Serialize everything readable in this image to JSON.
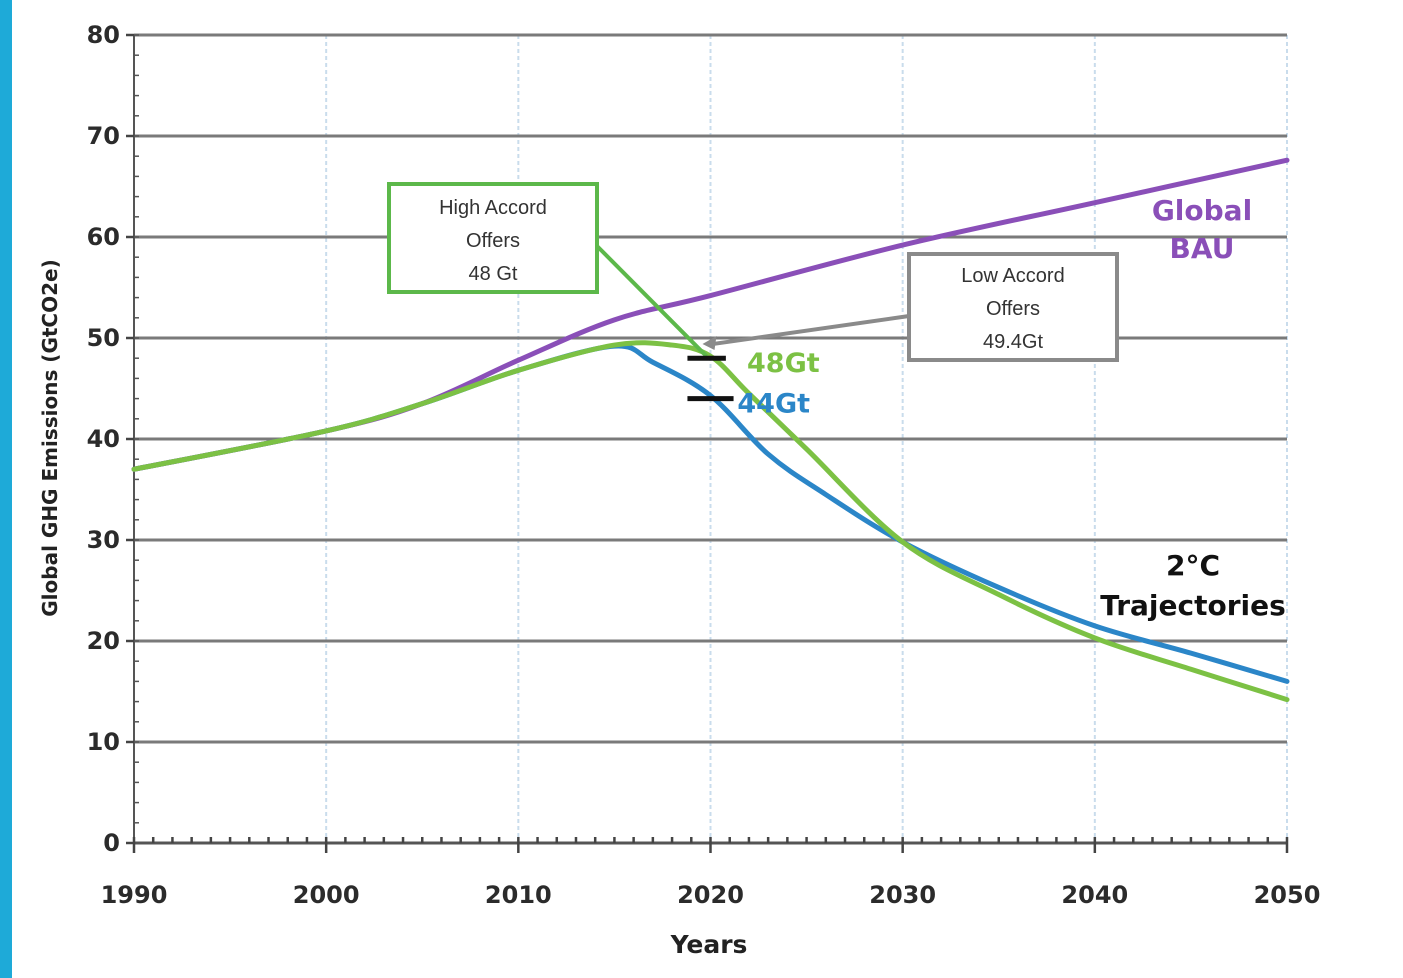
{
  "chart_data": {
    "type": "line",
    "title": "",
    "xlabel": "Years",
    "ylabel": "Global GHG Emissions (GtCO2e)",
    "xlim": [
      1990,
      2050
    ],
    "ylim": [
      0,
      80
    ],
    "x_ticks": [
      1990,
      2000,
      2010,
      2020,
      2030,
      2040,
      2050
    ],
    "y_ticks": [
      0,
      10,
      20,
      30,
      40,
      50,
      60,
      70,
      80
    ],
    "grid": "horizontal solid, vertical dashed",
    "series": [
      {
        "name": "Global BAU",
        "color": "#8a4fb8",
        "x": [
          1990,
          2000,
          2005,
          2010,
          2015,
          2020,
          2030,
          2040,
          2050
        ],
        "values": [
          37,
          40.8,
          43.5,
          47.8,
          51.8,
          54.2,
          59.2,
          63.4,
          67.6
        ]
      },
      {
        "name": "",
        "color": "#2b86c8",
        "x": [
          1990,
          2000,
          2005,
          2010,
          2015,
          2017,
          2020,
          2023,
          2026,
          2030,
          2035,
          2040,
          2045,
          2050
        ],
        "values": [
          37,
          40.8,
          43.5,
          46.8,
          49.2,
          47.6,
          44.3,
          38.5,
          34.5,
          29.8,
          25.3,
          21.5,
          18.8,
          16
        ]
      },
      {
        "name": "",
        "color": "#7cc144",
        "x": [
          1990,
          2000,
          2005,
          2010,
          2015,
          2018,
          2020,
          2022,
          2025,
          2030,
          2035,
          2040,
          2045,
          2050
        ],
        "values": [
          37,
          40.8,
          43.5,
          46.8,
          49.3,
          49.3,
          48.2,
          44.5,
          39,
          29.8,
          24.6,
          20.3,
          17.2,
          14.2
        ]
      }
    ],
    "annotations": {
      "high_accord": {
        "lines": [
          "High Accord",
          "Offers",
          "48 Gt"
        ],
        "color": "#5cb84a"
      },
      "low_accord": {
        "lines": [
          "Low Accord",
          "Offers",
          "49.4Gt"
        ],
        "color": "#8a8a8a"
      },
      "label_48": {
        "text": "48Gt",
        "color": "#7cc144"
      },
      "label_44": {
        "text": "44Gt",
        "color": "#2b86c8"
      },
      "bau_label": {
        "lines": [
          "Global",
          "BAU"
        ],
        "color": "#8a4fb8"
      },
      "trajectories_label": {
        "lines": [
          "2°C",
          "Trajectories"
        ],
        "color": "#111111"
      }
    }
  }
}
